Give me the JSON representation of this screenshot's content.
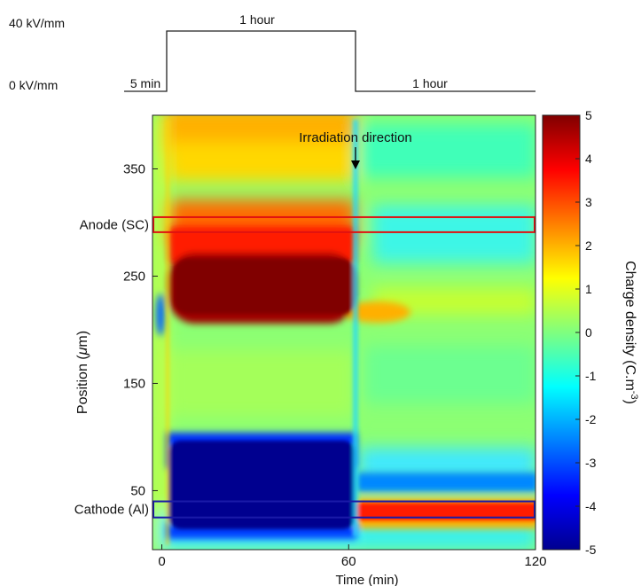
{
  "chart_data": {
    "type": "heatmap",
    "title": "",
    "xlabel": "Time (min)",
    "ylabel_prefix": "Position (",
    "ylabel_mu": "μ",
    "ylabel_suffix": "m)",
    "xlim": [
      -3,
      120
    ],
    "ylim": [
      -5,
      400
    ],
    "xticks": [
      0,
      60,
      120
    ],
    "yticks": [
      50,
      150,
      250,
      350
    ],
    "colorbar": {
      "label_main": "Charge density (C.m",
      "label_exp": "-3",
      "label_close": ")",
      "range": [
        -5,
        5
      ],
      "ticks": [
        5,
        4,
        3,
        2,
        1,
        0,
        -1,
        -2,
        -3,
        -4,
        -5
      ],
      "colormap": "jet"
    },
    "voltage_protocol": {
      "levels": [
        "40 kV/mm",
        "0 kV/mm"
      ],
      "segments": [
        "5 min",
        "1 hour",
        "1 hour"
      ]
    },
    "annotations": {
      "arrow_label": "Irradiation direction",
      "arrow_x": 60,
      "electrodes": [
        {
          "label": "Anode (SC)",
          "y_min": 291,
          "y_max": 305,
          "x_min": -3,
          "x_max": 120,
          "color": "#e01010"
        },
        {
          "label": "Cathode (Al)",
          "y_min": 25,
          "y_max": 40,
          "x_min": -3,
          "x_max": 120,
          "color": "#1a1aa8"
        }
      ]
    },
    "regions": [
      {
        "t": [
          -3,
          120
        ],
        "y": [
          -5,
          400
        ],
        "rho": 0.4,
        "note": "bulk"
      },
      {
        "t": [
          0,
          60
        ],
        "y": [
          175,
          260
        ],
        "rho": 5,
        "note": "positive charge cloud"
      },
      {
        "t": [
          0,
          60
        ],
        "y": [
          260,
          330
        ],
        "rho": 3.5
      },
      {
        "t": [
          0,
          60
        ],
        "y": [
          330,
          400
        ],
        "rho": 2.2
      },
      {
        "t": [
          0,
          60
        ],
        "y": [
          0,
          55
        ],
        "rho": -5,
        "note": "negative charge at cathode"
      },
      {
        "t": [
          60,
          120
        ],
        "y": [
          18,
          40
        ],
        "rho": 3.5,
        "note": "positive layer after removal"
      },
      {
        "t": [
          60,
          120
        ],
        "y": [
          210,
          290
        ],
        "rho": -0.6
      }
    ]
  }
}
